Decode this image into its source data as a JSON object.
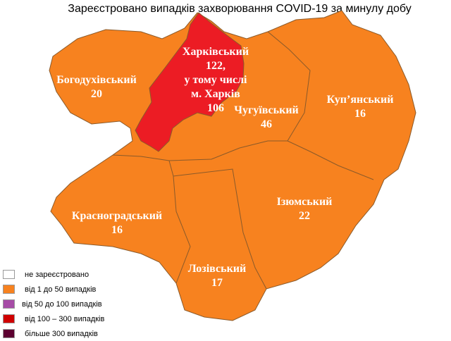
{
  "title": "Зареєстровано випадків захворювання COVID-19 за минулу добу",
  "colors": {
    "orange": "#F7821F",
    "red": "#EC1C24",
    "border": "#8a5a2a"
  },
  "districts": [
    {
      "name": "Харківський",
      "lines": [
        "Харківський",
        "122,",
        "у тому числі",
        "м. Харків",
        "106"
      ],
      "category": "від 100 – 300 випадків"
    },
    {
      "name": "Богодухівський",
      "value": "20",
      "category": "від 1 до 50 випадків"
    },
    {
      "name": "Чугуївський",
      "value": "46",
      "category": "від 1 до 50 випадків"
    },
    {
      "name": "Куп’янський",
      "value": "16",
      "category": "від 1 до 50 випадків"
    },
    {
      "name": "Красноградський",
      "value": "16",
      "category": "від 1 до 50 випадків"
    },
    {
      "name": "Ізюмський",
      "value": "22",
      "category": "від 1 до 50 випадків"
    },
    {
      "name": "Лозівський",
      "value": "17",
      "category": "від 1 до 50 випадків"
    }
  ],
  "legend": [
    {
      "label": "не зареєстровано",
      "color": "#FFFFFF"
    },
    {
      "label": "від 1 до 50  випадків",
      "color": "#F7821F"
    },
    {
      "label": "від 50 до 100  випадків",
      "color": "#A64CA6"
    },
    {
      "label": "від 100 – 300  випадків",
      "color": "#D00000"
    },
    {
      "label": "більше 300  випадків",
      "color": "#5C0030"
    }
  ]
}
